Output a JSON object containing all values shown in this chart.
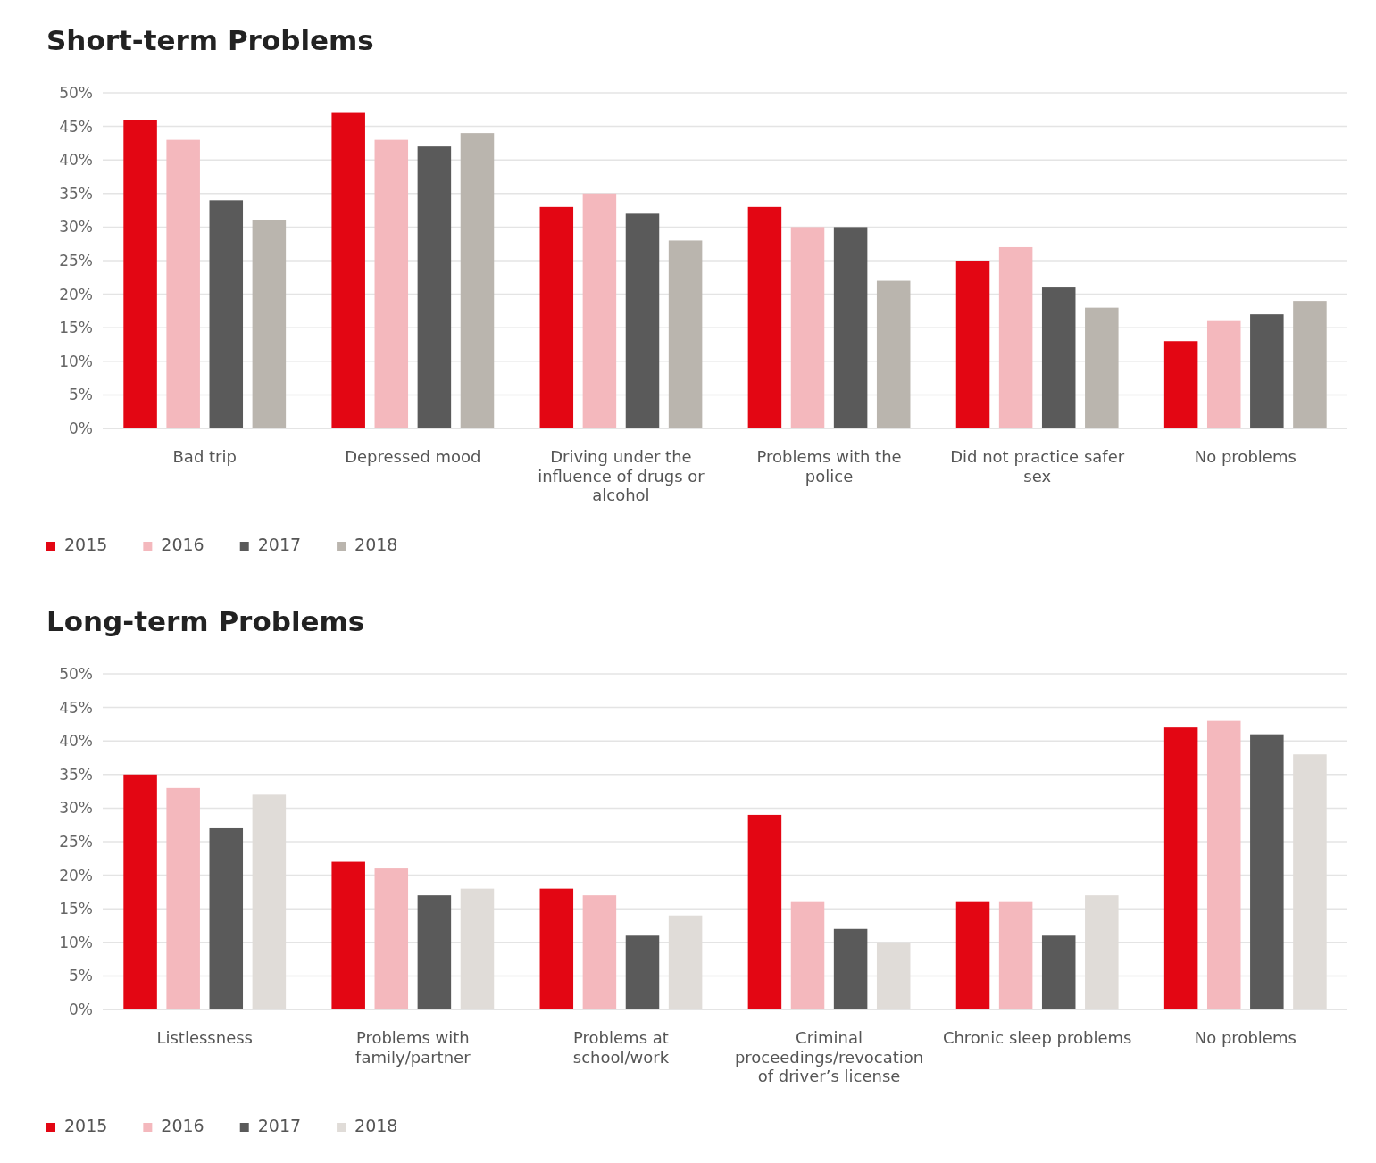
{
  "chart_data": [
    {
      "type": "bar",
      "title": "Short-term Problems",
      "categories": [
        "Bad trip",
        "Depressed mood",
        "Driving under the influence of drugs or alcohol",
        "Problems with the police",
        "Did not practice safer sex",
        "No problems"
      ],
      "series": [
        {
          "name": "2015",
          "color": "#e30613",
          "values": [
            46,
            47,
            33,
            33,
            25,
            13
          ]
        },
        {
          "name": "2016",
          "color": "#f4b8bd",
          "values": [
            43,
            43,
            35,
            30,
            27,
            16
          ]
        },
        {
          "name": "2017",
          "color": "#5a5a5a",
          "values": [
            34,
            42,
            32,
            30,
            21,
            17
          ]
        },
        {
          "name": "2018",
          "color": "#bab5ae",
          "values": [
            31,
            44,
            28,
            22,
            18,
            19
          ]
        }
      ],
      "ylim": [
        0,
        50
      ],
      "yticks": [
        {
          "value": 0,
          "label": "0%"
        },
        {
          "value": 5,
          "label": "5%"
        },
        {
          "value": 10,
          "label": "10%"
        },
        {
          "value": 15,
          "label": "15%"
        },
        {
          "value": 20,
          "label": "20%"
        },
        {
          "value": 25,
          "label": "25%"
        },
        {
          "value": 30,
          "label": "30%"
        },
        {
          "value": 35,
          "label": "35%"
        },
        {
          "value": 40,
          "label": "40%"
        },
        {
          "value": 45,
          "label": "45%"
        },
        {
          "value": 50,
          "label": "50%"
        }
      ],
      "grid": "y",
      "legend": "bottom"
    },
    {
      "type": "bar",
      "title": "Long-term Problems",
      "categories": [
        "Listlessness",
        "Problems with family/partner",
        "Problems at school/work",
        "Criminal proceedings/revocation of driver’s license",
        "Chronic sleep problems",
        "No problems"
      ],
      "series": [
        {
          "name": "2015",
          "color": "#e30613",
          "values": [
            35,
            22,
            18,
            29,
            16,
            42
          ]
        },
        {
          "name": "2016",
          "color": "#f4b8bd",
          "values": [
            33,
            21,
            17,
            16,
            16,
            43
          ]
        },
        {
          "name": "2017",
          "color": "#5a5a5a",
          "values": [
            27,
            17,
            11,
            12,
            11,
            41
          ]
        },
        {
          "name": "2018",
          "color": "#e0dcd8",
          "values": [
            32,
            18,
            14,
            10,
            17,
            38
          ]
        }
      ],
      "ylim": [
        0,
        50
      ],
      "yticks": [
        {
          "value": 0,
          "label": "0%"
        },
        {
          "value": 5,
          "label": "5%"
        },
        {
          "value": 10,
          "label": "10%"
        },
        {
          "value": 15,
          "label": "15%"
        },
        {
          "value": 20,
          "label": "20%"
        },
        {
          "value": 25,
          "label": "25%"
        },
        {
          "value": 30,
          "label": "30%"
        },
        {
          "value": 35,
          "label": "35%"
        },
        {
          "value": 40,
          "label": "40%"
        },
        {
          "value": 45,
          "label": "45%"
        },
        {
          "value": 50,
          "label": "50%"
        }
      ],
      "grid": "y",
      "legend": "bottom"
    }
  ]
}
